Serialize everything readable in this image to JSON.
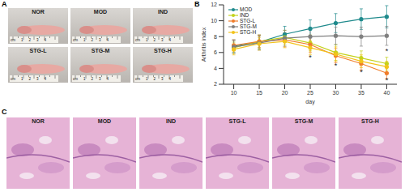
{
  "panel_labels": [
    "A",
    "B",
    "C"
  ],
  "panel_a": {
    "labels": [
      "NOR",
      "MOD",
      "IND",
      "STG-L",
      "STG-M",
      "STG-H"
    ],
    "ruler_labels": [
      "cm",
      "1",
      "2",
      "3",
      "4"
    ]
  },
  "chart_data": {
    "type": "line",
    "xlabel": "day",
    "ylabel": "Arthritis index",
    "x": [
      10,
      15,
      20,
      25,
      30,
      35,
      40
    ],
    "xlim": [
      8,
      42
    ],
    "xticks": [
      10,
      15,
      20,
      25,
      30,
      35,
      40
    ],
    "ylim": [
      2,
      12
    ],
    "yticks": [
      2,
      4,
      6,
      8,
      10,
      12
    ],
    "grid": false,
    "legend": "upper left",
    "marker": "circle",
    "series": [
      {
        "name": "MOD",
        "color": "#1f8a8c",
        "values": [
          6.8,
          7.3,
          8.3,
          9.0,
          9.7,
          10.2,
          10.5
        ],
        "errors": [
          0.8,
          0.9,
          1.0,
          1.1,
          1.2,
          1.3,
          1.4
        ]
      },
      {
        "name": "IND",
        "color": "#c3d21b",
        "values": [
          6.6,
          7.4,
          7.9,
          7.2,
          6.0,
          5.3,
          4.6
        ],
        "errors": [
          0.7,
          0.8,
          0.9,
          1.0,
          1.0,
          0.9,
          0.8
        ]
      },
      {
        "name": "STG-L",
        "color": "#f07d2a",
        "values": [
          6.9,
          7.4,
          7.6,
          7.0,
          5.6,
          4.6,
          3.4
        ],
        "errors": [
          0.7,
          0.8,
          0.9,
          1.0,
          0.9,
          0.8,
          0.7
        ]
      },
      {
        "name": "STG-M",
        "color": "#7f7f7f",
        "values": [
          6.7,
          7.2,
          7.8,
          8.0,
          8.1,
          8.0,
          8.1
        ],
        "errors": [
          0.8,
          0.9,
          1.0,
          1.1,
          1.1,
          1.2,
          1.2
        ]
      },
      {
        "name": "STG-H",
        "color": "#f2c31b",
        "values": [
          6.4,
          7.1,
          7.4,
          6.6,
          5.8,
          4.9,
          4.2
        ],
        "errors": [
          0.7,
          0.8,
          0.8,
          0.9,
          0.9,
          0.8,
          0.7
        ]
      }
    ],
    "annotations": [
      {
        "x": 25,
        "y": 5.4,
        "text": "*"
      },
      {
        "x": 30,
        "y": 4.4,
        "text": "*"
      },
      {
        "x": 35,
        "y": 3.5,
        "text": "*"
      },
      {
        "x": 40,
        "y": 2.5,
        "text": "*"
      },
      {
        "x": 40,
        "y": 6.2,
        "text": "*"
      }
    ]
  },
  "panel_c": {
    "labels": [
      "NOR",
      "MOD",
      "IND",
      "STG-L",
      "STG-M",
      "STG-H"
    ]
  }
}
